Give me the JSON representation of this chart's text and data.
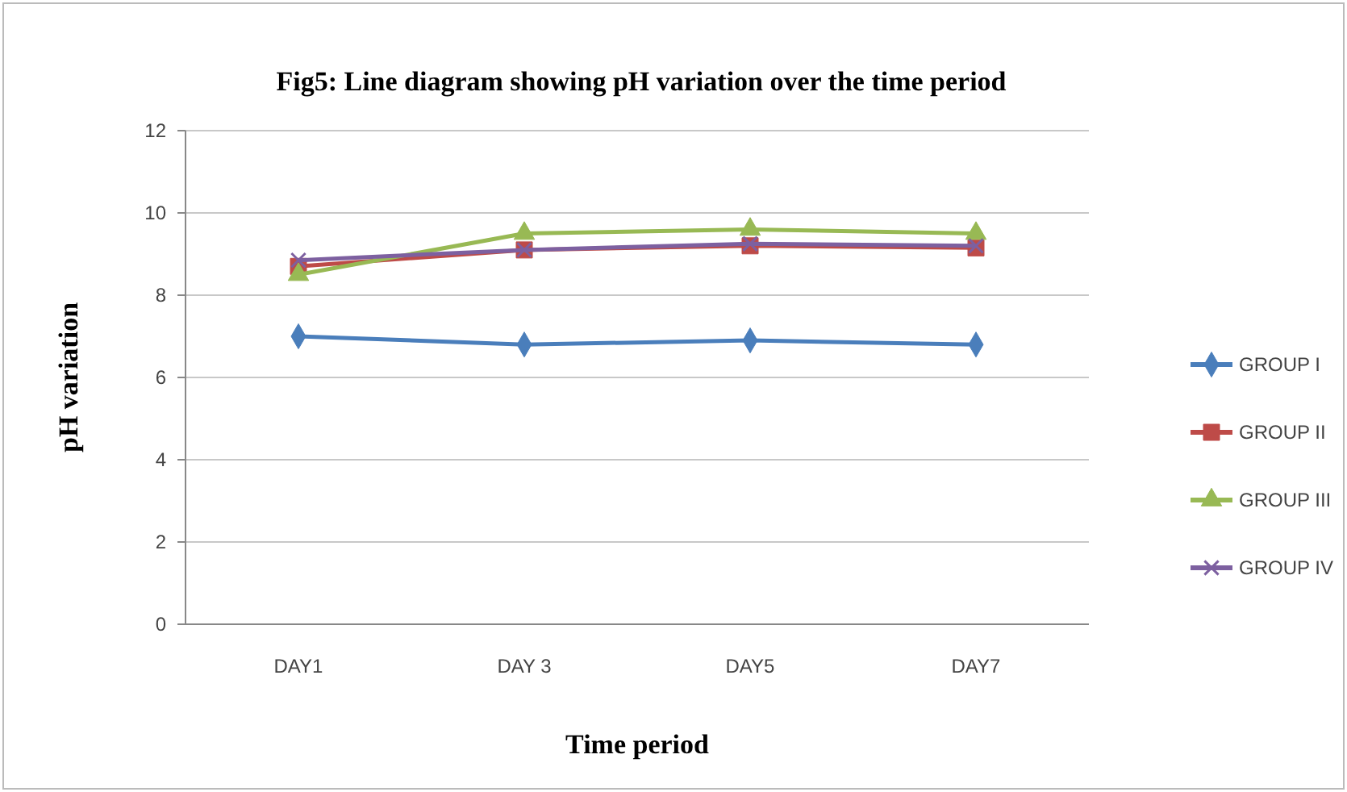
{
  "chart_data": {
    "type": "line",
    "title": "Fig5: Line diagram showing pH variation over the time period",
    "xlabel": "Time period",
    "ylabel": "pH variation",
    "categories": [
      "DAY1",
      "DAY 3",
      "DAY5",
      "DAY7"
    ],
    "ylim": [
      0,
      12
    ],
    "yticks": [
      0,
      2,
      4,
      6,
      8,
      10,
      12
    ],
    "grid": "y",
    "legend": "right",
    "series": [
      {
        "name": "GROUP I",
        "color": "#4a7ebb",
        "marker": "diamond",
        "values": [
          7.0,
          6.8,
          6.9,
          6.8
        ]
      },
      {
        "name": "GROUP II",
        "color": "#be4b48",
        "marker": "square",
        "values": [
          8.7,
          9.1,
          9.2,
          9.15
        ]
      },
      {
        "name": "GROUP III",
        "color": "#98b954",
        "marker": "triangle",
        "values": [
          8.5,
          9.5,
          9.6,
          9.5
        ]
      },
      {
        "name": "GROUP IV",
        "color": "#7d60a0",
        "marker": "cross",
        "values": [
          8.85,
          9.1,
          9.25,
          9.2
        ]
      }
    ]
  }
}
